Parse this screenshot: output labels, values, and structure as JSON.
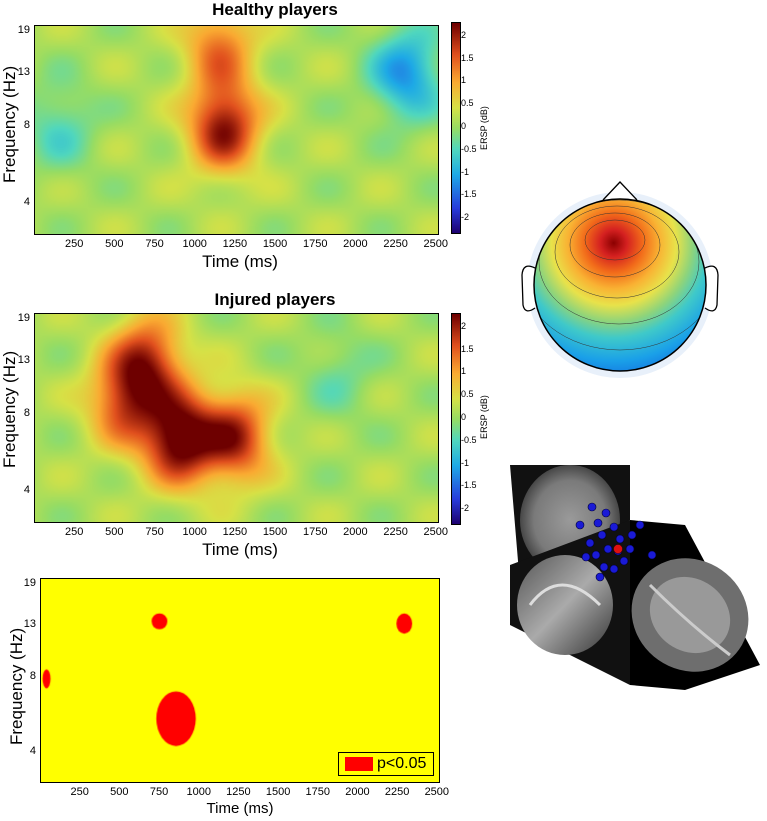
{
  "panels": [
    {
      "title": "Healthy players",
      "ylabel": "Frequency (Hz)",
      "xlabel": "Time (ms)",
      "cbar_label": "ERSP (dB)"
    },
    {
      "title": "Injured players",
      "ylabel": "Frequency (Hz)",
      "xlabel": "Time (ms)",
      "cbar_label": "ERSP (dB)"
    },
    {
      "title": "",
      "ylabel": "Frequency (Hz)",
      "xlabel": "Time (ms)",
      "legend": "p<0.05"
    }
  ],
  "x_ticks": [
    "250",
    "500",
    "750",
    "1000",
    "1250",
    "1500",
    "1750",
    "2000",
    "2250",
    "2500"
  ],
  "y_ticks": [
    "19",
    "13",
    "8",
    "4"
  ],
  "cbar_ticks": [
    "2",
    "1.5",
    "1",
    "0.5",
    "0",
    "-0.5",
    "-1",
    "-1.5",
    "-2"
  ],
  "chart_data": [
    {
      "type": "heatmap",
      "title": "Healthy players",
      "xlabel": "Time (ms)",
      "ylabel": "Frequency (Hz)",
      "xlim": [
        0,
        2520
      ],
      "y_ticks": [
        4,
        8,
        13,
        19
      ],
      "colorbar": {
        "label": "ERSP (dB)",
        "range": [
          -2.3,
          2.3
        ]
      },
      "blobs": [
        {
          "x": 1180,
          "y": 8,
          "value": 2.0
        },
        {
          "x": 1150,
          "y": 17,
          "value": 1.2
        },
        {
          "x": 2320,
          "y": 13,
          "value": -1.3
        },
        {
          "x": 150,
          "y": 8,
          "value": -0.6
        }
      ]
    },
    {
      "type": "heatmap",
      "title": "Injured players",
      "xlabel": "Time (ms)",
      "ylabel": "Frequency (Hz)",
      "xlim": [
        0,
        2520
      ],
      "y_ticks": [
        4,
        8,
        13,
        19
      ],
      "colorbar": {
        "label": "ERSP (dB)",
        "range": [
          -2.3,
          2.3
        ]
      },
      "blobs": [
        {
          "x": 900,
          "y": 6.5,
          "value": 2.4
        },
        {
          "x": 700,
          "y": 13,
          "value": 1.7
        },
        {
          "x": 1250,
          "y": 6.5,
          "value": 1.8
        },
        {
          "x": 550,
          "y": 9,
          "value": 1.4
        },
        {
          "x": 1900,
          "y": 11.5,
          "value": -0.4
        }
      ]
    },
    {
      "type": "heatmap",
      "xlabel": "Time (ms)",
      "ylabel": "Frequency (Hz)",
      "xlim": [
        0,
        2520
      ],
      "y_ticks": [
        4,
        8,
        13,
        19
      ],
      "legend": "p<0.05",
      "significant_regions": [
        {
          "x": [
            10,
            60
          ],
          "y": [
            7.2,
            8.6
          ]
        },
        {
          "x": [
            700,
            800
          ],
          "y": [
            12.5,
            14.5
          ]
        },
        {
          "x": [
            730,
            980
          ],
          "y": [
            4.2,
            7.0
          ]
        },
        {
          "x": [
            2250,
            2350
          ],
          "y": [
            12.0,
            14.5
          ]
        }
      ]
    }
  ],
  "colors": {
    "significant": "#ff0000",
    "nonsignificant": "#ffff00"
  }
}
